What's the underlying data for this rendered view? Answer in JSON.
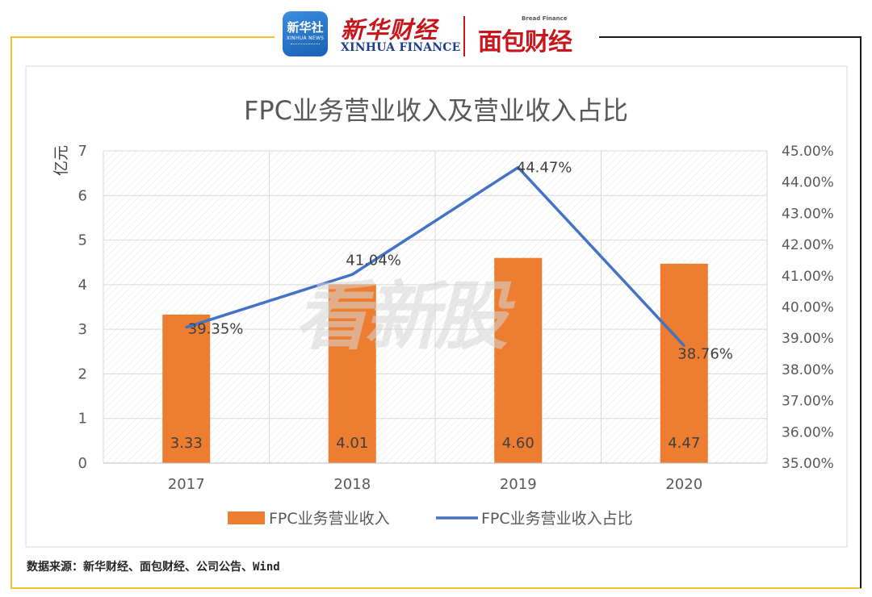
{
  "header": {
    "xinhua_badge_cn": "新华社",
    "xinhua_badge_en": "XINHUA NEWS",
    "xinhua_finance_cn": "新华财经",
    "xinhua_finance_en": "XINHUA FINANCE",
    "bread_finance_en": "Bread Finance",
    "bread_finance_cn": "面包财经"
  },
  "watermark": "看新股",
  "source_text": "数据来源：新华财经、面包财经、公司公告、Wind",
  "colors": {
    "bar": "#ED7D31",
    "line": "#4472C4",
    "frame": "#F2C230",
    "text": "#595959"
  },
  "chart_data": {
    "type": "bar",
    "title": "FPC业务营业收入及营业收入占比",
    "categories": [
      "2017",
      "2018",
      "2019",
      "2020"
    ],
    "ylabel": "亿元",
    "ylim": [
      0,
      7
    ],
    "yticks": [
      "0",
      "1",
      "2",
      "3",
      "4",
      "5",
      "6",
      "7"
    ],
    "y2lim": [
      35,
      45
    ],
    "y2ticks": [
      "35.00%",
      "36.00%",
      "37.00%",
      "38.00%",
      "39.00%",
      "40.00%",
      "41.00%",
      "42.00%",
      "43.00%",
      "44.00%",
      "45.00%"
    ],
    "grid": true,
    "legend_position": "bottom",
    "series": [
      {
        "name": "FPC业务营业收入",
        "type": "bar",
        "axis": "left",
        "values": [
          3.33,
          4.01,
          4.6,
          4.47
        ],
        "labels": [
          "3.33",
          "4.01",
          "4.60",
          "4.47"
        ]
      },
      {
        "name": "FPC业务营业收入占比",
        "type": "line",
        "axis": "right",
        "values": [
          39.35,
          41.04,
          44.47,
          38.76
        ],
        "labels": [
          "39.35%",
          "41.04%",
          "44.47%",
          "38.76%"
        ]
      }
    ]
  }
}
